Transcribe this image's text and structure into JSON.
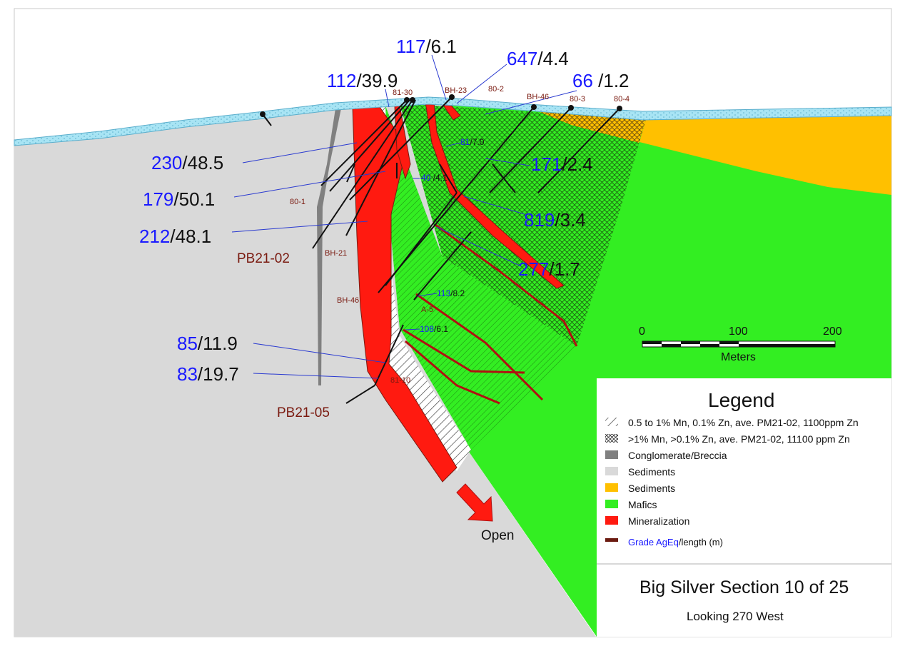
{
  "title": "Big Silver Section 10 of 25",
  "subtitle": "Looking 270 West",
  "legend": {
    "heading": "Legend",
    "items": [
      {
        "label": "0.5 to 1% Mn, 0.1% Zn, ave. PM21-02, 1100ppm Zn",
        "swatch": "sparse-hatch"
      },
      {
        "label": ">1% Mn, >0.1% Zn, ave. PM21-02, 11100 ppm Zn",
        "swatch": "crosshatch"
      },
      {
        "label": "Conglomerate/Breccia",
        "color": "#808080"
      },
      {
        "label": "Sediments",
        "color": "#d9d9d9"
      },
      {
        "label": "Sediments",
        "color": "#ffc000"
      },
      {
        "label": "Mafics",
        "color": "#33ee22"
      },
      {
        "label": "Mineralization",
        "color": "#ff1a10"
      }
    ],
    "grade_label_blue": "Grade AgEq",
    "grade_label_black": "/length (m)",
    "grade_color": "#6b1a10"
  },
  "scale_bar": {
    "ticks": [
      "0",
      "100",
      "200"
    ],
    "unit": "Meters"
  },
  "open_label": "Open",
  "holes": [
    "81-30",
    "BH-23",
    "80-2",
    "BH-46",
    "80-3",
    "80-4",
    "80-1",
    "PB21-02",
    "BH-21",
    "BH-46",
    "A-5",
    "81-10",
    "PB21-05"
  ],
  "assays": [
    {
      "grade": "117",
      "length": "/6.1"
    },
    {
      "grade": "647",
      "length": "/4.4"
    },
    {
      "grade": "112",
      "length": "/39.9"
    },
    {
      "grade": "66",
      "length": " /1.2"
    },
    {
      "grade": "230",
      "length": "/48.5"
    },
    {
      "grade": "179",
      "length": "/50.1"
    },
    {
      "grade": "212",
      "length": "/48.1"
    },
    {
      "grade": "171",
      "length": "/2.4"
    },
    {
      "grade": "819",
      "length": "/3.4"
    },
    {
      "grade": "277",
      "length": "/1.7"
    },
    {
      "grade": "85",
      "length": "/11.9"
    },
    {
      "grade": "83",
      "length": "/19.7"
    },
    {
      "grade": "81",
      "length": "/7.0"
    },
    {
      "grade": "40",
      "length": " /4.1"
    },
    {
      "grade": "113",
      "length": "/8.2"
    },
    {
      "grade": "108",
      "length": "/6.1"
    }
  ],
  "colors": {
    "sediment_grey": "#d9d9d9",
    "conglomerate": "#808080",
    "sediment_orange": "#ffc000",
    "mafics": "#33ee22",
    "mineralization": "#ff1a10",
    "overburden": "#a8e4f4",
    "grade_blue": "#1a1aff",
    "hole_label": "#7a1a10"
  }
}
